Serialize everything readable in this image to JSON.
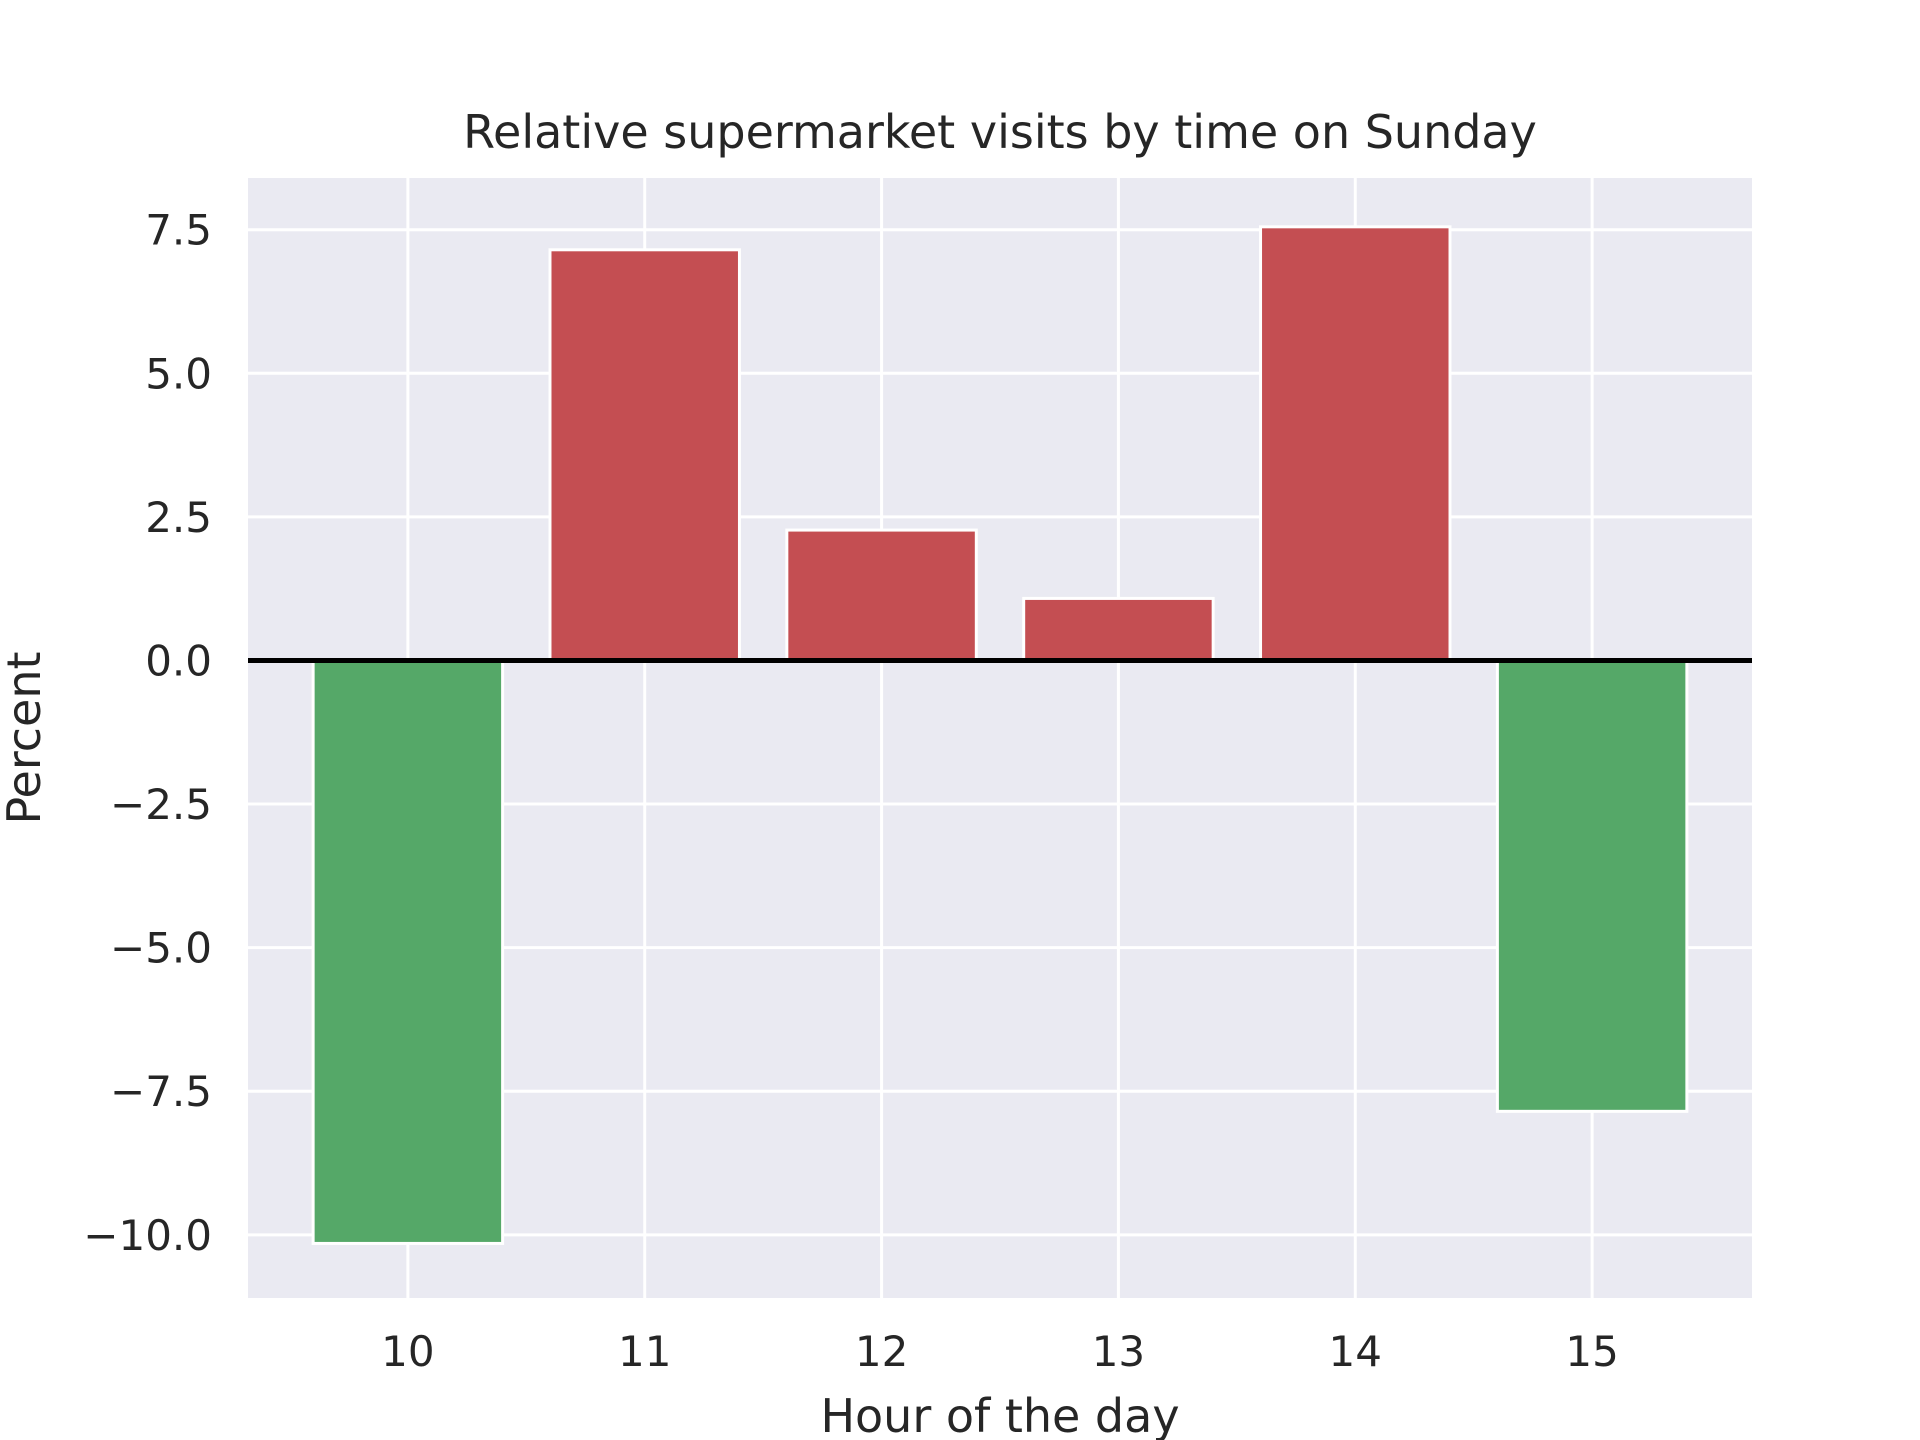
{
  "chart_data": {
    "type": "bar",
    "title": "Relative supermarket visits by time on Sunday",
    "xlabel": "Hour of the day",
    "ylabel": "Percent",
    "categories": [
      "10",
      "11",
      "12",
      "13",
      "14",
      "15"
    ],
    "values": [
      -10.15,
      7.15,
      2.27,
      1.08,
      7.55,
      -7.85
    ],
    "ylim": [
      -11.1,
      8.4
    ],
    "yticks": [
      7.5,
      5.0,
      2.5,
      0.0,
      -2.5,
      -5.0,
      -7.5,
      -10.0
    ],
    "ytick_labels": [
      "7.5",
      "5.0",
      "2.5",
      "0.0",
      "−2.5",
      "−5.0",
      "−7.5",
      "−10.0"
    ],
    "grid": true,
    "zero_line": true,
    "colors": {
      "positive": "#c44e52",
      "negative": "#55a868",
      "background": "#eaeaf2",
      "grid": "#ffffff",
      "zero_line": "#000000",
      "text": "#262626"
    }
  }
}
